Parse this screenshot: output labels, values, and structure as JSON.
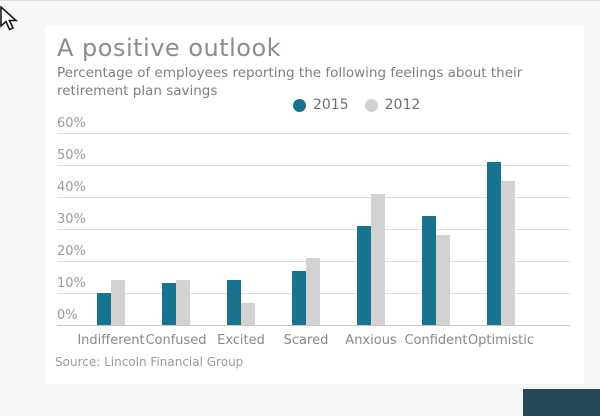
{
  "page": {
    "cursor_icon": "mouse-pointer-arrow",
    "background_color": "#f7f7f7",
    "card_color": "#ffffff",
    "corner_box_color": "#25475a"
  },
  "chart_data": {
    "type": "bar",
    "title": "A positive outlook",
    "subtitle": "Percentage of employees reporting the following feelings about their retirement plan savings",
    "categories": [
      "Indifferent",
      "Confused",
      "Excited",
      "Scared",
      "Anxious",
      "Confident",
      "Optimistic"
    ],
    "series": [
      {
        "name": "2015",
        "color": "#17738e",
        "values": [
          10,
          13,
          14,
          17,
          31,
          34,
          51
        ]
      },
      {
        "name": "2012",
        "color": "#d2d2d2",
        "values": [
          14,
          14,
          7,
          21,
          41,
          28,
          45
        ]
      }
    ],
    "xlabel": "",
    "ylabel": "",
    "ylim": [
      0,
      60
    ],
    "y_ticks": [
      "60%",
      "50%",
      "40%",
      "30%",
      "20%",
      "10%",
      "0%"
    ],
    "grid": true,
    "gridline_color": "#dedede",
    "zero_line_color": "#c6c6c6",
    "legend_position": "top-center",
    "source": "Source: Lincoln Financial Group"
  }
}
